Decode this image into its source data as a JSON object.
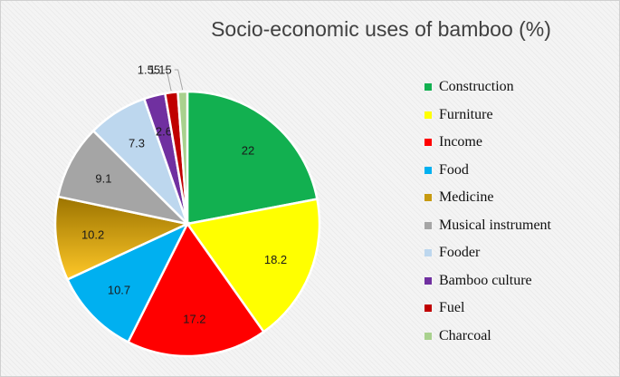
{
  "chart_data": {
    "type": "pie",
    "title": "Socio-economic uses of bamboo (%)",
    "legend_position": "right",
    "slices": [
      {
        "label": "Construction",
        "value": 22,
        "value_label": "22",
        "color": "#12b050"
      },
      {
        "label": "Furniture",
        "value": 18.2,
        "value_label": "18.2",
        "color": "#ffff00"
      },
      {
        "label": "Income",
        "value": 17.2,
        "value_label": "17.2",
        "color": "#ff0000"
      },
      {
        "label": "Food",
        "value": 10.7,
        "value_label": "10.7",
        "color": "#00b0f0"
      },
      {
        "label": "Medicine",
        "value": 10.2,
        "value_label": "10.2",
        "color": "#c79a10"
      },
      {
        "label": "Musical instrument",
        "value": 9.1,
        "value_label": "9.1",
        "color": "#a5a5a5"
      },
      {
        "label": "Fooder",
        "value": 7.3,
        "value_label": "7.3",
        "color": "#bdd7ee"
      },
      {
        "label": "Bamboo culture",
        "value": 2.6,
        "value_label": "2.6",
        "color": "#7030a0"
      },
      {
        "label": "Fuel",
        "value": 1.55,
        "value_label": "1.55",
        "color": "#c00000"
      },
      {
        "label": "Charcoal",
        "value": 1.15,
        "value_label": "1.15",
        "color": "#a9d18e"
      }
    ]
  }
}
